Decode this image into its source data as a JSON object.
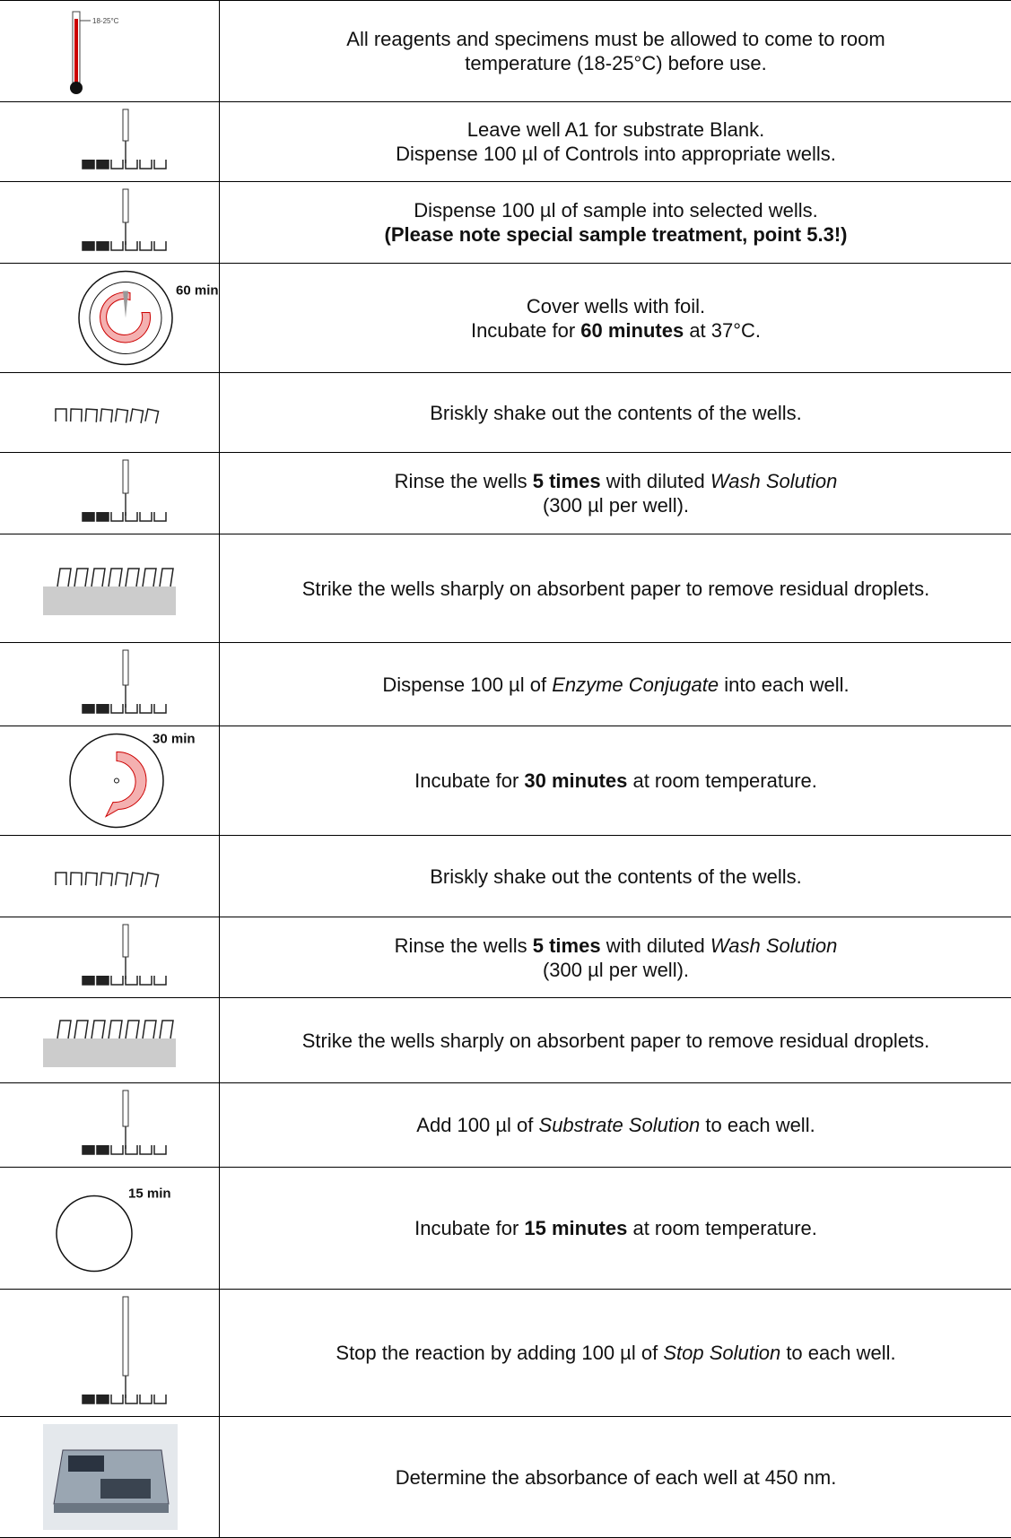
{
  "steps": [
    {
      "icon": "thermometer",
      "icon_label": "18-25°C",
      "lines": [
        [
          {
            "text": "All reagents and specimens must be allowed to come to room"
          }
        ],
        [
          {
            "text": "temperature (18-25°C) before use."
          }
        ]
      ]
    },
    {
      "icon": "pipette",
      "lines": [
        [
          {
            "text": "Leave well A1 for substrate Blank."
          }
        ],
        [
          {
            "text": "Dispense 100 µl of Controls into appropriate wells."
          }
        ]
      ]
    },
    {
      "icon": "pipette",
      "lines": [
        [
          {
            "text": "Dispense 100 µl of sample into selected wells."
          }
        ],
        [
          {
            "text": "(Please note special sample treatment, point 5.3!)",
            "style": "bold"
          }
        ]
      ]
    },
    {
      "icon": "timer-full",
      "icon_label": "60 min",
      "lines": [
        [
          {
            "text": "Cover wells with foil."
          }
        ],
        [
          {
            "text": "Incubate for "
          },
          {
            "text": "60 minutes",
            "style": "bold"
          },
          {
            "text": " at 37°C."
          }
        ]
      ]
    },
    {
      "icon": "shake",
      "lines": [
        [
          {
            "text": "Briskly shake out the contents of the wells."
          }
        ]
      ]
    },
    {
      "icon": "pipette",
      "lines": [
        [
          {
            "text": "Rinse the wells "
          },
          {
            "text": "5 times",
            "style": "bold"
          },
          {
            "text": " with diluted "
          },
          {
            "text": "Wash Solution",
            "style": "italic"
          }
        ],
        [
          {
            "text": "(300 µl per well)."
          }
        ]
      ]
    },
    {
      "icon": "strike",
      "lines": [
        [
          {
            "text": "Strike the wells sharply on absorbent paper to remove residual droplets."
          }
        ]
      ]
    },
    {
      "icon": "pipette",
      "lines": [
        [
          {
            "text": "Dispense 100 µl of "
          },
          {
            "text": "Enzyme Conjugate",
            "style": "italic"
          },
          {
            "text": " into each well."
          }
        ]
      ]
    },
    {
      "icon": "timer-half",
      "icon_label": "30 min",
      "lines": [
        [
          {
            "text": "Incubate for "
          },
          {
            "text": "30 minutes",
            "style": "bold"
          },
          {
            "text": " at room temperature."
          }
        ]
      ]
    },
    {
      "icon": "shake",
      "lines": [
        [
          {
            "text": "Briskly shake out the contents of the wells."
          }
        ]
      ]
    },
    {
      "icon": "pipette",
      "lines": [
        [
          {
            "text": "Rinse the wells "
          },
          {
            "text": "5 times",
            "style": "bold"
          },
          {
            "text": " with diluted "
          },
          {
            "text": "Wash Solution",
            "style": "italic"
          }
        ],
        [
          {
            "text": "(300 µl per well)."
          }
        ]
      ]
    },
    {
      "icon": "strike",
      "lines": [
        [
          {
            "text": "Strike the wells sharply on absorbent paper to remove residual droplets."
          }
        ]
      ]
    },
    {
      "icon": "pipette",
      "lines": [
        [
          {
            "text": "Add 100 µl of "
          },
          {
            "text": "Substrate Solution",
            "style": "italic"
          },
          {
            "text": " to each well."
          }
        ]
      ]
    },
    {
      "icon": "timer-empty",
      "icon_label": "15 min",
      "lines": [
        [
          {
            "text": "Incubate for "
          },
          {
            "text": "15 minutes",
            "style": "bold"
          },
          {
            "text": " at room temperature."
          }
        ]
      ]
    },
    {
      "icon": "pipette",
      "lines": [
        [
          {
            "text": "Stop the reaction by adding 100 µl of "
          },
          {
            "text": "Stop Solution",
            "style": "italic"
          },
          {
            "text": " to each well."
          }
        ]
      ]
    },
    {
      "icon": "reader",
      "lines": [
        [
          {
            "text": "Determine the absorbance of each well at 450 nm."
          }
        ]
      ]
    }
  ]
}
